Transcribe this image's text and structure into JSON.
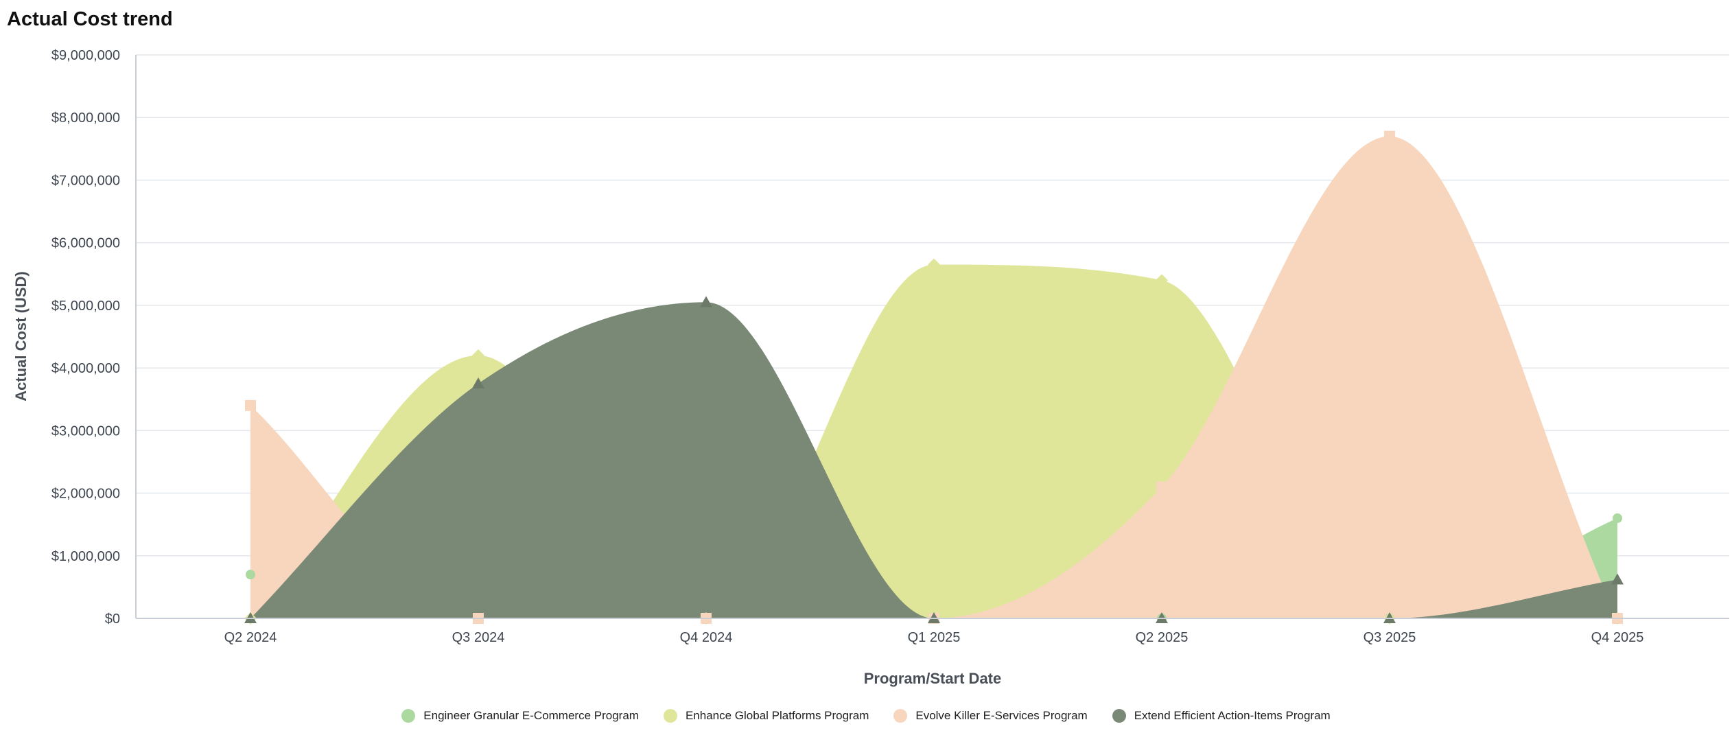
{
  "chart_data": {
    "type": "area",
    "title": "Actual Cost trend",
    "xlabel": "Program/Start Date",
    "ylabel": "Actual Cost (USD)",
    "x": [
      "Q2 2024",
      "Q3 2024",
      "Q4 2024",
      "Q1 2025",
      "Q2 2025",
      "Q3 2025",
      "Q4 2025"
    ],
    "ylim": [
      0,
      9000000
    ],
    "yticks": [
      0,
      1000000,
      2000000,
      3000000,
      4000000,
      5000000,
      6000000,
      7000000,
      8000000,
      9000000
    ],
    "ytick_labels": [
      "$0",
      "$1,000,000",
      "$2,000,000",
      "$3,000,000",
      "$4,000,000",
      "$5,000,000",
      "$6,000,000",
      "$7,000,000",
      "$8,000,000",
      "$9,000,000"
    ],
    "grid": true,
    "legend_position": "bottom-center",
    "series": [
      {
        "name": "Engineer Granular E-Commerce Program",
        "color": "#acd9a0",
        "marker": "circle",
        "values": [
          700000,
          0,
          0,
          0,
          0,
          0,
          1600000
        ]
      },
      {
        "name": "Enhance Global Platforms Program",
        "color": "#dfe69a",
        "marker": "diamond",
        "values": [
          0,
          4200000,
          0,
          5650000,
          5400000,
          0,
          0
        ]
      },
      {
        "name": "Evolve Killer E-Services Program",
        "color": "#f7d6bd",
        "marker": "square",
        "values": [
          3400000,
          0,
          0,
          0,
          2100000,
          7700000,
          0
        ]
      },
      {
        "name": "Extend Efficient Action-Items Program",
        "color": "#7a8876",
        "marker": "triangle",
        "values": [
          0,
          3750000,
          5050000,
          0,
          0,
          0,
          620000
        ]
      }
    ]
  }
}
